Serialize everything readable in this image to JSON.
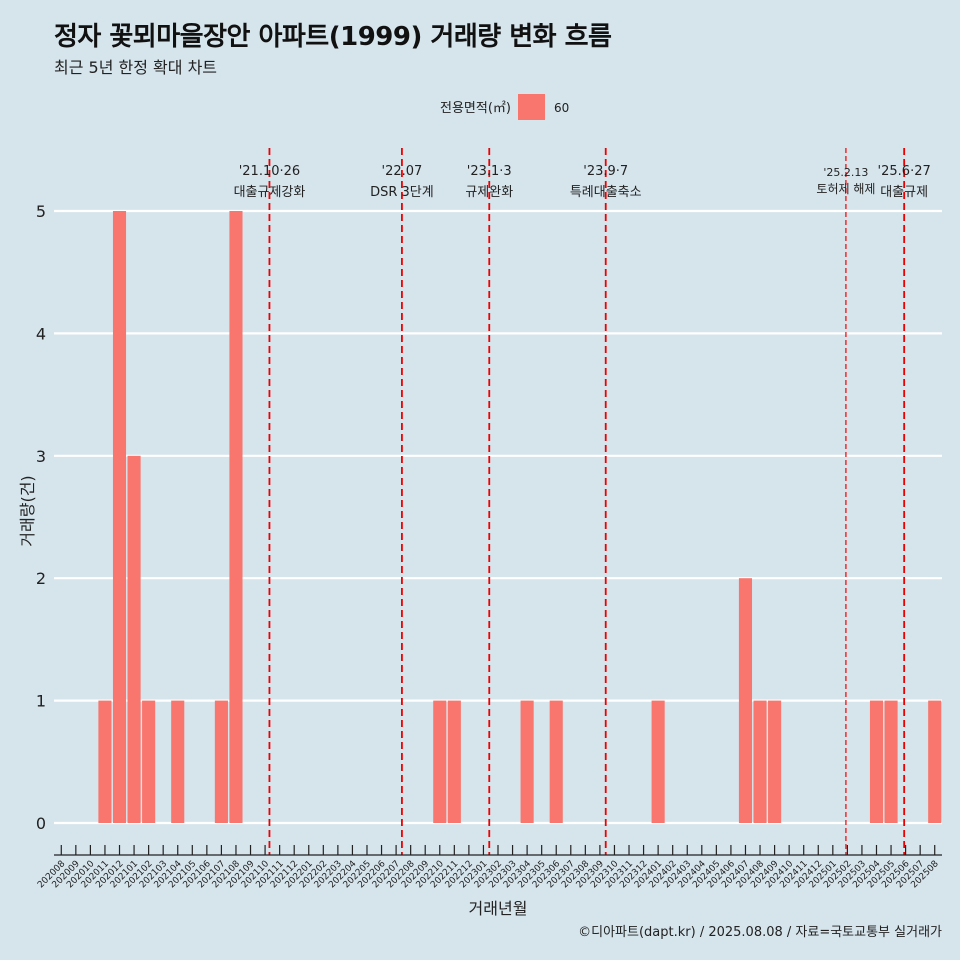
{
  "header": {
    "title": "정자 꽃뫼마을장안 아파트(1999) 거래량 변화 흐름",
    "subtitle": "최근 5년 한정 확대 차트"
  },
  "legend": {
    "title": "전용면적(㎡)",
    "items": [
      {
        "label": "60",
        "color": "#f8766d"
      }
    ]
  },
  "caption": "©디아파트(dapt.kr) / 2025.08.08 / 자료=국토교통부 실거래가",
  "colors": {
    "bar": "#f8766d",
    "event_line": "#ee0000",
    "grid": "#ffffff",
    "background": "#d6e4ec"
  },
  "chart_data": {
    "type": "bar",
    "xlabel": "거래년월",
    "ylabel": "거래량(건)",
    "ylim": [
      0,
      5
    ],
    "yticks": [
      0,
      1,
      2,
      3,
      4,
      5
    ],
    "grid": true,
    "legend_position": "top",
    "categories": [
      "202008",
      "202009",
      "202010",
      "202011",
      "202012",
      "202101",
      "202102",
      "202103",
      "202104",
      "202105",
      "202106",
      "202107",
      "202108",
      "202109",
      "202110",
      "202111",
      "202112",
      "202201",
      "202202",
      "202203",
      "202204",
      "202205",
      "202206",
      "202207",
      "202208",
      "202209",
      "202210",
      "202211",
      "202212",
      "202301",
      "202302",
      "202303",
      "202304",
      "202305",
      "202306",
      "202307",
      "202308",
      "202309",
      "202310",
      "202311",
      "202312",
      "202401",
      "202402",
      "202403",
      "202404",
      "202405",
      "202406",
      "202407",
      "202408",
      "202409",
      "202410",
      "202411",
      "202412",
      "202501",
      "202502",
      "202503",
      "202504",
      "202505",
      "202506",
      "202507",
      "202508"
    ],
    "series": [
      {
        "name": "60",
        "values": [
          0,
          0,
          0,
          1,
          5,
          3,
          1,
          0,
          1,
          0,
          0,
          1,
          5,
          0,
          0,
          0,
          0,
          0,
          0,
          0,
          0,
          0,
          0,
          0,
          0,
          0,
          1,
          1,
          0,
          0,
          0,
          0,
          1,
          0,
          1,
          0,
          0,
          0,
          0,
          0,
          0,
          1,
          0,
          0,
          0,
          0,
          0,
          2,
          1,
          1,
          0,
          0,
          0,
          0,
          0,
          0,
          1,
          1,
          0,
          0,
          1
        ]
      }
    ],
    "annotations": [
      {
        "date": "'21.10·26",
        "label": "대출규제강화",
        "position": 14.8,
        "dashed_fine": false
      },
      {
        "date": "'22.07",
        "label": "DSR 3단계",
        "position": 23.9,
        "dashed_fine": false
      },
      {
        "date": "'23.1·3",
        "label": "규제완화",
        "position": 29.9,
        "dashed_fine": false
      },
      {
        "date": "'23.9·7",
        "label": "특례대출축소",
        "position": 37.9,
        "dashed_fine": false
      },
      {
        "date": "'25.2.13",
        "label": "토허제 해제",
        "position": 54.4,
        "dashed_fine": true
      },
      {
        "date": "'25.6·27",
        "label": "대출규제",
        "position": 58.4,
        "dashed_fine": false
      }
    ]
  }
}
